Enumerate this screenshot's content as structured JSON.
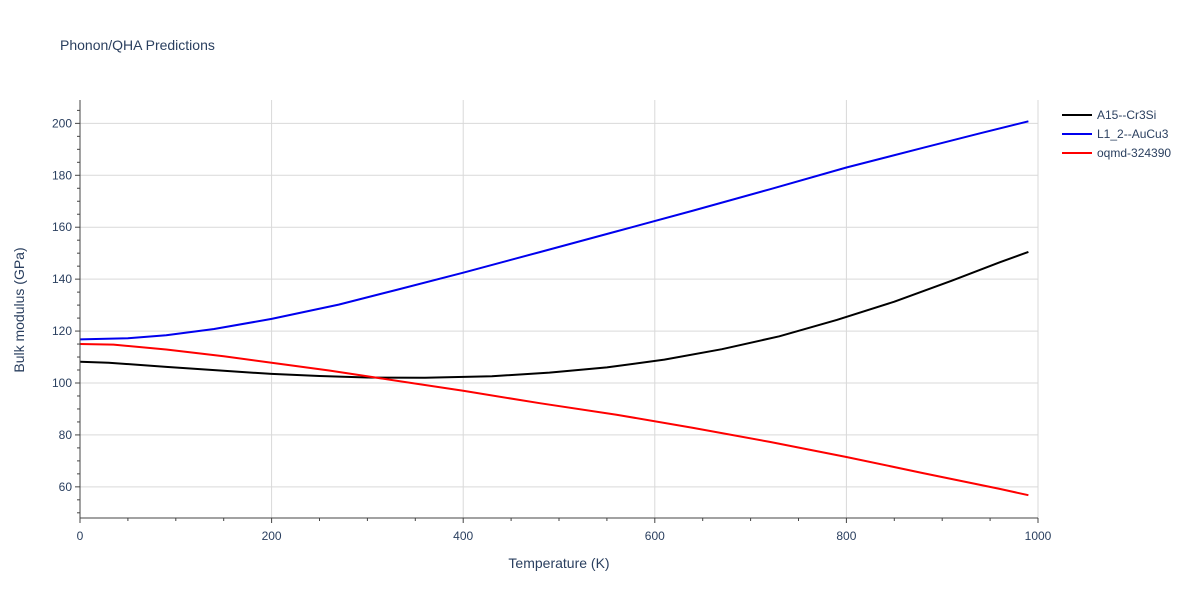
{
  "chart_data": {
    "type": "line",
    "title": "Phonon/QHA Predictions",
    "xlabel": "Temperature (K)",
    "ylabel": "Bulk modulus (GPa)",
    "xlim": [
      0,
      1000
    ],
    "ylim": [
      48,
      209
    ],
    "xticks": [
      0,
      200,
      400,
      600,
      800,
      1000
    ],
    "yticks": [
      60,
      80,
      100,
      120,
      140,
      160,
      180,
      200
    ],
    "grid": true,
    "legend_position": "top-right",
    "series": [
      {
        "name": "A15--Cr3Si",
        "color": "#000000",
        "x": [
          0,
          30,
          90,
          150,
          200,
          250,
          300,
          360,
          430,
          490,
          550,
          610,
          670,
          730,
          790,
          850,
          910,
          960,
          990
        ],
        "y": [
          108.2,
          107.8,
          106.2,
          104.7,
          103.5,
          102.7,
          102.1,
          102.0,
          102.6,
          104.0,
          106.0,
          109.0,
          113.0,
          118.0,
          124.3,
          131.3,
          139.4,
          146.5,
          150.5
        ]
      },
      {
        "name": "L1_2--AuCu3",
        "color": "#0000ee",
        "x": [
          0,
          50,
          90,
          140,
          200,
          270,
          330,
          400,
          480,
          560,
          640,
          720,
          800,
          880,
          940,
          990
        ],
        "y": [
          116.8,
          117.2,
          118.4,
          120.8,
          124.7,
          130.2,
          135.8,
          142.5,
          150.4,
          158.4,
          166.4,
          174.6,
          183.0,
          190.6,
          196.2,
          200.8
        ]
      },
      {
        "name": "oqmd-324390",
        "color": "#ff0000",
        "x": [
          0,
          35,
          90,
          150,
          200,
          260,
          310,
          400,
          480,
          560,
          640,
          720,
          800,
          880,
          960,
          990
        ],
        "y": [
          115.0,
          114.8,
          112.9,
          110.3,
          107.8,
          104.8,
          102.0,
          97.0,
          92.2,
          87.8,
          82.7,
          77.3,
          71.5,
          65.3,
          59.2,
          56.8
        ]
      }
    ]
  }
}
